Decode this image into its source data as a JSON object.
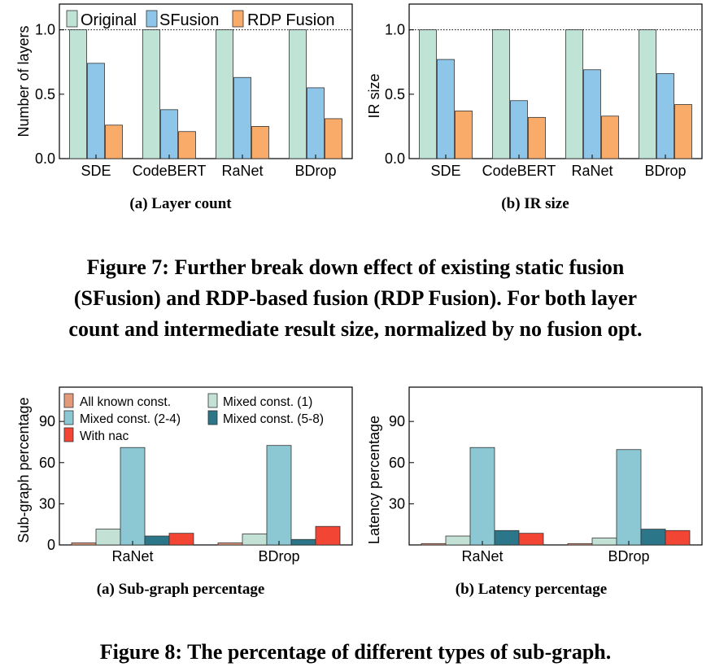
{
  "figure7": {
    "caption_lines": [
      "Figure 7: Further break down effect of existing static fusion",
      "(SFusion) and RDP-based fusion (RDP Fusion). For both layer",
      "count and intermediate result size, normalized by no fusion opt."
    ]
  },
  "figure8": {
    "caption": "Figure 8: The percentage of different types of sub-graph."
  },
  "colors": {
    "Original": "#bfe3d5",
    "SFusion": "#8ec6ea",
    "RDP Fusion": "#f9ab6a",
    "All known const.": "#e39a7b",
    "Mixed const. (1)": "#c3e1d4",
    "Mixed const. (2-4)": "#8cc7d4",
    "Mixed const. (5-8)": "#2b7689",
    "With nac": "#f24534"
  },
  "chart_data": [
    {
      "id": "fig7a",
      "type": "bar",
      "caption": "(a) Layer count",
      "ylabel": "Number of layers",
      "xlabel": "",
      "ylim": [
        0,
        1.2
      ],
      "yticks": [
        "0.0",
        "0.5",
        "1.0"
      ],
      "reference_line": 1.0,
      "categories": [
        "SDE",
        "CodeBERT",
        "RaNet",
        "BDrop"
      ],
      "legend_position": "top",
      "series": [
        {
          "name": "Original",
          "values": [
            1.0,
            1.0,
            1.0,
            1.0
          ]
        },
        {
          "name": "SFusion",
          "values": [
            0.74,
            0.38,
            0.63,
            0.55
          ]
        },
        {
          "name": "RDP Fusion",
          "values": [
            0.26,
            0.21,
            0.25,
            0.31
          ]
        }
      ]
    },
    {
      "id": "fig7b",
      "type": "bar",
      "caption": "(b) IR size",
      "ylabel": "IR size",
      "xlabel": "",
      "ylim": [
        0,
        1.2
      ],
      "yticks": [
        "0.0",
        "0.5",
        "1.0"
      ],
      "reference_line": 1.0,
      "categories": [
        "SDE",
        "CodeBERT",
        "RaNet",
        "BDrop"
      ],
      "series": [
        {
          "name": "Original",
          "values": [
            1.0,
            1.0,
            1.0,
            1.0
          ]
        },
        {
          "name": "SFusion",
          "values": [
            0.77,
            0.45,
            0.69,
            0.66
          ]
        },
        {
          "name": "RDP Fusion",
          "values": [
            0.37,
            0.32,
            0.33,
            0.42
          ]
        }
      ]
    },
    {
      "id": "fig8a",
      "type": "bar",
      "caption": "(a) Sub-graph percentage",
      "ylabel": "Sub-graph percentage",
      "xlabel": "",
      "ylim": [
        0,
        115
      ],
      "yticks": [
        "0",
        "30",
        "60",
        "90"
      ],
      "categories": [
        "RaNet",
        "BDrop"
      ],
      "legend_position": "top-left",
      "series": [
        {
          "name": "All known const.",
          "values": [
            1.5,
            1.5
          ]
        },
        {
          "name": "Mixed const. (1)",
          "values": [
            11.5,
            8
          ]
        },
        {
          "name": "Mixed const. (2-4)",
          "values": [
            71,
            72.5
          ]
        },
        {
          "name": "Mixed const. (5-8)",
          "values": [
            6.5,
            4
          ]
        },
        {
          "name": "With nac",
          "values": [
            8.5,
            13.5
          ]
        }
      ]
    },
    {
      "id": "fig8b",
      "type": "bar",
      "caption": "(b) Latency percentage",
      "ylabel": "Latency percentage",
      "xlabel": "",
      "ylim": [
        0,
        115
      ],
      "yticks": [
        "30",
        "60",
        "90"
      ],
      "categories": [
        "RaNet",
        "BDrop"
      ],
      "series": [
        {
          "name": "All known const.",
          "values": [
            1,
            1
          ]
        },
        {
          "name": "Mixed const. (1)",
          "values": [
            6.5,
            5
          ]
        },
        {
          "name": "Mixed const. (2-4)",
          "values": [
            71,
            69.5
          ]
        },
        {
          "name": "Mixed const. (5-8)",
          "values": [
            10.5,
            11.5
          ]
        },
        {
          "name": "With nac",
          "values": [
            8.5,
            10.5
          ]
        }
      ]
    }
  ]
}
